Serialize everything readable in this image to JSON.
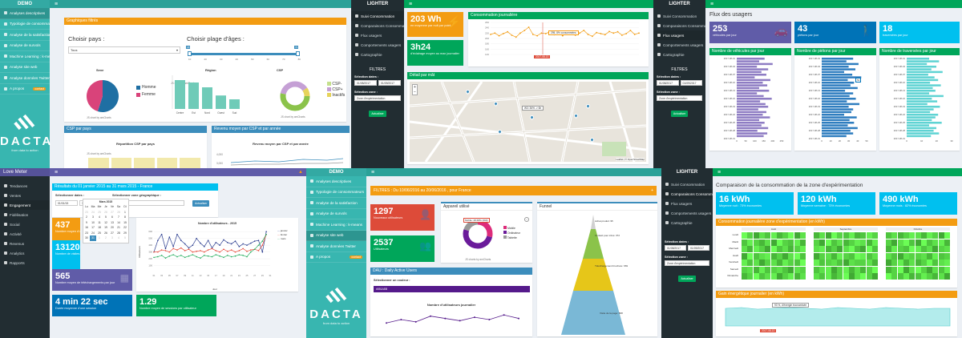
{
  "colors": {
    "teal": "#38b6b0",
    "dark": "#222d32",
    "green": "#00a65a",
    "orange": "#f39c12",
    "red": "#dd4b39",
    "purple": "#605ca8",
    "blue": "#0073b7",
    "aqua": "#00c0ef",
    "navy": "#3c8dbc"
  },
  "p1": {
    "brand": "DEMO",
    "menu": [
      {
        "label": "Analyses descriptives",
        "icon": "bar-chart-icon"
      },
      {
        "label": "Typologie de consommateurs",
        "icon": "users-icon"
      },
      {
        "label": "Analyse de la satisfaction",
        "icon": "smile-icon"
      },
      {
        "label": "Analyse de survols",
        "icon": "chart-icon"
      },
      {
        "label": "Machine Learning : k-means",
        "icon": "cogs-icon"
      },
      {
        "label": "Analyse site web",
        "icon": "globe-icon"
      },
      {
        "label": "Analyse données Twitter",
        "icon": "twitter-icon"
      },
      {
        "label": "A propos",
        "icon": "info-icon",
        "badge": "contact"
      }
    ],
    "logo": {
      "word": "DACTA",
      "tag": "from data to action"
    },
    "graph_title": "Graphiques filtrés",
    "pays_label": "Choisir pays :",
    "pays_value": "Tous",
    "age_label": "Choisir plage d'âges :",
    "age_min": "18",
    "age_max": "70",
    "age_ticks": [
      "10",
      "20",
      "30",
      "40",
      "50",
      "60",
      "70",
      "80"
    ],
    "sexe": {
      "title": "Sexe",
      "legend": [
        "Homme",
        "Femme"
      ],
      "values": [
        55,
        45
      ],
      "credit": "JS chart by amCharts"
    },
    "region": {
      "title": "Région",
      "categories": [
        "Centre",
        "Est",
        "Nord",
        "Ouest",
        "Sud"
      ],
      "values": [
        60,
        55,
        45,
        28,
        20
      ],
      "credit": "JS chart by amCharts"
    },
    "csp": {
      "title": "CSP",
      "legend": [
        "CSP-",
        "CSP+",
        "Inactifs"
      ],
      "credit": "JS chart by amCharts"
    },
    "csp_pays": {
      "box": "CSP par pays",
      "chart": "Répartition CSP par pays",
      "credit": "JS chart by amCharts"
    },
    "revenu": {
      "box": "Revenu moyen par CSP et par année",
      "chart": "Revenu moyen par CSP et par année",
      "ticks": [
        "4,000",
        "3,000"
      ]
    }
  },
  "p2": {
    "brand": "LIGHTER",
    "menu": [
      {
        "label": "Suivi Consommation"
      },
      {
        "label": "Comparaisons Consommation"
      },
      {
        "label": "Flux usagers"
      },
      {
        "label": "Comportements usagers"
      },
      {
        "label": "Cartographie"
      }
    ],
    "filters": "FILTRES",
    "date_label": "Sélection dates :",
    "date_from": "01/08/2017",
    "date_to": "01/09/2017",
    "zone_label": "Sélection zone :",
    "zone_value": "Zone d'expérimentation",
    "button": "Actualiser",
    "kpi1": {
      "value": "203 Wh",
      "text": "en moyenne par nuit par point"
    },
    "kpi2": {
      "value": "3h24",
      "text": "d'éclairage moyen au max journalier"
    },
    "conso_title": "Consommation journalière",
    "tooltip": "295, 8% consommées",
    "date_badge": "2017-08-13",
    "conso": {
      "y_ticks": [
        "260",
        "240",
        "220",
        "200",
        "180",
        "160",
        "140"
      ],
      "values": [
        215,
        220,
        210,
        218,
        225,
        212,
        205,
        220,
        230,
        242,
        215,
        210,
        220,
        218,
        225,
        214,
        222,
        210,
        226,
        218,
        212,
        220,
        230,
        215,
        208,
        222,
        218,
        214,
        226,
        220,
        225,
        212,
        218,
        230,
        215,
        220
      ]
    },
    "detail_title": "Détail par mât",
    "map_label": "W3: 36% -> 6h",
    "map_credit": "Leaflet | © OpenStreetMap"
  },
  "p3": {
    "brand": "LIGHTER",
    "menu": [
      {
        "label": "Suivi Consommation"
      },
      {
        "label": "Comparaisons Consommation"
      },
      {
        "label": "Flux usagers"
      },
      {
        "label": "Comportements usagers"
      },
      {
        "label": "Cartographie"
      }
    ],
    "filters": "FILTRES",
    "date_label": "Sélection dates :",
    "date_from": "01/08/2017",
    "date_to": "01/09/2017",
    "zone_label": "Sélection zone :",
    "zone_value": "Zone d'expérimentation",
    "button": "Actualiser",
    "page_title": "Flux des usagers",
    "kpi1": {
      "value": "253",
      "text": "véhicules par jour"
    },
    "kpi2": {
      "value": "43",
      "text": "piétons par jour"
    },
    "kpi3": {
      "value": "18",
      "text": "traversées par jour"
    },
    "chart1": {
      "title": "Nombre de véhicules par jour",
      "x_ticks": [
        "0",
        "50",
        "100",
        "150",
        "200",
        "250"
      ],
      "values": [
        0.62,
        0.5,
        0.8,
        0.45,
        0.7,
        0.55,
        0.66,
        0.4,
        0.75,
        0.58,
        0.68,
        0.5,
        0.72,
        0.45,
        0.6,
        0.78,
        0.52,
        0.64,
        0.7,
        0.48,
        0.66,
        0.58,
        0.74,
        0.5,
        0.62,
        0.55,
        0.7,
        0.46,
        0.68,
        0.6
      ]
    },
    "chart2": {
      "title": "Nombre de piétons par jour",
      "x_ticks": [
        "0",
        "10",
        "20",
        "30",
        "40",
        "50"
      ],
      "tooltip": "52",
      "values": [
        0.7,
        0.55,
        0.82,
        0.6,
        0.75,
        0.5,
        0.68,
        0.88,
        0.58,
        0.72,
        0.64,
        0.8,
        0.52,
        0.7,
        0.62,
        0.76,
        0.56,
        0.84,
        0.6,
        0.7,
        0.66,
        0.5,
        0.78,
        0.62,
        0.72,
        0.58,
        0.8,
        0.64,
        0.7,
        0.55
      ]
    },
    "chart3": {
      "title": "Nombre de traversées par jour",
      "x_ticks": [
        "0",
        "10",
        "20",
        "30"
      ],
      "values": [
        0.5,
        0.72,
        0.45,
        0.66,
        0.55,
        0.8,
        0.48,
        0.62,
        0.7,
        0.52,
        0.76,
        0.58,
        0.64,
        0.5,
        0.82,
        0.56,
        0.68,
        0.46,
        0.74,
        0.6,
        0.52,
        0.7,
        0.64,
        0.56,
        0.78,
        0.5,
        0.66,
        0.6,
        0.72,
        0.54
      ]
    },
    "y_ticks": [
      "2017-08-01",
      "2017-08-04",
      "2017-08-07",
      "2017-08-10",
      "2017-08-13",
      "2017-08-16",
      "2017-08-19",
      "2017-08-22",
      "2017-08-25",
      "2017-08-28",
      "2017-08-31"
    ]
  },
  "p4": {
    "brand": "Love Meter",
    "menu": [
      {
        "label": "Tendances"
      },
      {
        "label": "Ventes"
      },
      {
        "label": "Engagement"
      },
      {
        "label": "Fidélisation"
      },
      {
        "label": "Social"
      },
      {
        "label": "Activité"
      },
      {
        "label": "Revenus"
      },
      {
        "label": "Analytics"
      },
      {
        "label": "Rapports"
      }
    ],
    "result_title": "Résultats du 01 janvier 2015 au 31 mars 2015 - France",
    "date_label": "Sélectionner dates :",
    "date_from": "01/01/15",
    "date_to": "31/03/15",
    "geo_label": "Sélectionner zone géographique :",
    "geo_value": "France",
    "button": "Actualiser",
    "calendar": {
      "month": "Mars 2015",
      "days": [
        "Lu",
        "Ma",
        "Me",
        "Je",
        "Ve",
        "Sa",
        "Di"
      ],
      "dates": [
        "23",
        "24",
        "25",
        "26",
        "27",
        "28",
        "1",
        "2",
        "3",
        "4",
        "5",
        "6",
        "7",
        "8",
        "9",
        "10",
        "11",
        "12",
        "13",
        "14",
        "15",
        "16",
        "17",
        "18",
        "19",
        "20",
        "21",
        "22",
        "23",
        "24",
        "25",
        "26",
        "27",
        "28",
        "29",
        "30",
        "31",
        "1",
        "2",
        "3",
        "4",
        "5"
      ],
      "selected": "31"
    },
    "kpi1": {
      "value": "437",
      "text": "Nombre moyen d'utilisateurs"
    },
    "kpi2": {
      "value": "13120",
      "text": "Nombre de visites"
    },
    "kpi3": {
      "value": "565",
      "text": "Nombre moyen de téléchargements par jour"
    },
    "kpi4": {
      "value": "4 min 22 sec",
      "text": "Durée moyenne d'une session"
    },
    "kpi5": {
      "value": "1.29",
      "text": "Nombre moyen de sessions par utilisateur"
    },
    "chart": {
      "title": "Nombre d'utilisateurs - 2015",
      "ylabel": "Utilisateurs",
      "xlabel": "Jour",
      "legend": [
        "janvier",
        "février",
        "mars"
      ],
      "series": [
        [
          300,
          470,
          560,
          350,
          520,
          380,
          560,
          470,
          420,
          360,
          400,
          500,
          430,
          380,
          470,
          360,
          440,
          400,
          480,
          440,
          420,
          460,
          380,
          420,
          400,
          430,
          460,
          470,
          300,
          600
        ],
        [
          300,
          300,
          330,
          320,
          300,
          350,
          330,
          360,
          320,
          340,
          300,
          310,
          320,
          300,
          330,
          350,
          320,
          300,
          340,
          310,
          330,
          300,
          320,
          350,
          310,
          330,
          340,
          320,
          400,
          560
        ],
        [
          220,
          230,
          250,
          210,
          240,
          260,
          230,
          250,
          220,
          240,
          260,
          230,
          210,
          250,
          240,
          230,
          260,
          240,
          220,
          250,
          230,
          240,
          260,
          250,
          230,
          300,
          340,
          400,
          460,
          560
        ]
      ],
      "x_ticks": [
        "01",
        "02",
        "03",
        "04",
        "05",
        "06",
        "07",
        "08",
        "09",
        "10",
        "11",
        "12",
        "13",
        "14",
        "15",
        "16",
        "17",
        "18",
        "19",
        "20",
        "21",
        "22",
        "23",
        "24",
        "25",
        "26",
        "27",
        "28",
        "29",
        "30",
        "31"
      ],
      "y_ticks": [
        "600",
        "500",
        "400",
        "300",
        "200",
        "100"
      ]
    }
  },
  "p5": {
    "brand": "DEMO",
    "menu": [
      {
        "label": "Analyses descriptives"
      },
      {
        "label": "Typologie de consommateurs"
      },
      {
        "label": "Analyse de la satisfaction"
      },
      {
        "label": "Analyse de survols"
      },
      {
        "label": "Machine Learning : k-means"
      },
      {
        "label": "Analyse site web"
      },
      {
        "label": "Analyse données Twitter"
      },
      {
        "label": "A propos",
        "badge": "contact"
      }
    ],
    "logo": {
      "word": "DACTA",
      "tag": "from data to action"
    },
    "filters_title": "FILTRES : Du 10/06/2016 au 20/06/2016 , pour France",
    "kpi1": {
      "value": "1297",
      "text": "Nouveaux utilisateurs"
    },
    "kpi2": {
      "value": "2537",
      "text": "Utilisateurs"
    },
    "device": {
      "title": "Appareil utilisé",
      "tooltip": "Mobile: 28.68% (399)",
      "legend": [
        "Mobile",
        "Ordinateur",
        "Tablette"
      ],
      "values": [
        28.68,
        51.32,
        20
      ],
      "credit": "JS charts by amCharts"
    },
    "funnel": {
      "title": "Funnel",
      "labels": [
        "Achat produit: 95",
        "Contact pour infos: 372",
        "Téléchargement brochure: 669",
        "Visite de la page: 868"
      ]
    },
    "dau": {
      "title": "DAU : Daily Active Users",
      "select_label": "Sélectionner un couleur :",
      "select_value": "#551A8B",
      "chart": "Nombre d'utilisateurs journalier",
      "values": [
        1100,
        1250,
        1150,
        1400,
        1300,
        1200,
        1350,
        1250,
        1450,
        1300
      ]
    }
  },
  "p6": {
    "brand": "LIGHTER",
    "menu": [
      {
        "label": "Suivi Consommation"
      },
      {
        "label": "Comparaisons Consommation"
      },
      {
        "label": "Flux usagers"
      },
      {
        "label": "Comportements usagers"
      },
      {
        "label": "Cartographie"
      }
    ],
    "date_label": "Sélection dates :",
    "date_from": "01/08/2017",
    "date_to": "01/09/2017",
    "zone_label": "Sélection zone :",
    "zone_value": "Zone d'expérimentation",
    "button": "Actualiser",
    "page_title": "Comparaison de la consommation de la zone d'expérimentation",
    "kpi1": {
      "value": "16 kWh",
      "text": "Moyenne nuit : 73% économies"
    },
    "kpi2": {
      "value": "120 kWh",
      "text": "Moyenne semaine : 73% économies"
    },
    "kpi3": {
      "value": "490 kWh",
      "text": "Moyenne mois : 82% économies"
    },
    "heat_title": "Consommation journalière zone d'expérimentation (en kWh)",
    "heat_groups": [
      "Août",
      "Septembre",
      "Octobre"
    ],
    "heat_rows": [
      "Lundi",
      "Mardi",
      "Mercredi",
      "Jeudi",
      "Vendredi",
      "Samedi",
      "Dimanche"
    ],
    "gain_title": "Gain énergétique journalier (en kWh)",
    "gain_tooltip": "93 %, d'énergie économisée",
    "gain_badge": "2017-08-13"
  }
}
